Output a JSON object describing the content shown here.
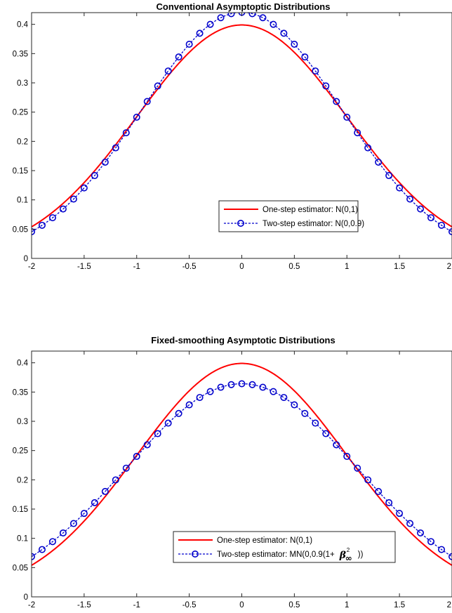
{
  "chart_data": [
    {
      "type": "line",
      "title": "Conventional Asymptoptic Distributions",
      "xlim": [
        -2,
        2
      ],
      "ylim": [
        0,
        0.42
      ],
      "xticks": [
        -2,
        -1.5,
        -1,
        -0.5,
        0,
        0.5,
        1,
        1.5,
        2
      ],
      "xtick_labels": [
        "-2",
        "-1.5",
        "-1",
        "-0.5",
        "0",
        "0.5",
        "1",
        "1.5",
        "2"
      ],
      "yticks": [
        0,
        0.05,
        0.1,
        0.15,
        0.2,
        0.25,
        0.3,
        0.35,
        0.4
      ],
      "ytick_labels": [
        "0",
        "0.05",
        "0.1",
        "0.15",
        "0.2",
        "0.25",
        "0.3",
        "0.35",
        "0.4"
      ],
      "legend_position": "lower-right",
      "grid": false,
      "series": [
        {
          "name": "One-step estimator: N(0,1)",
          "color": "#ff0000",
          "style": "solid",
          "marker": "none",
          "dist": "normal",
          "variance": 1,
          "x": [
            -2,
            -1.8,
            -1.6,
            -1.4,
            -1.2,
            -1,
            -0.8,
            -0.6,
            -0.4,
            -0.2,
            0,
            0.2,
            0.4,
            0.6,
            0.8,
            1,
            1.2,
            1.4,
            1.6,
            1.8,
            2
          ],
          "y": [
            0.054,
            0.079,
            0.111,
            0.15,
            0.194,
            0.242,
            0.29,
            0.333,
            0.368,
            0.391,
            0.399,
            0.391,
            0.368,
            0.333,
            0.29,
            0.242,
            0.194,
            0.15,
            0.111,
            0.079,
            0.054
          ]
        },
        {
          "name": "Two-step estimator: N(0,0.9)",
          "color": "#0000cc",
          "style": "dashed",
          "marker": "circle",
          "dist": "normal",
          "variance": 0.9,
          "x": [
            -2,
            -1.8,
            -1.6,
            -1.4,
            -1.2,
            -1,
            -0.8,
            -0.6,
            -0.4,
            -0.2,
            0,
            0.2,
            0.4,
            0.6,
            0.8,
            1,
            1.2,
            1.4,
            1.6,
            1.8,
            2
          ],
          "y": [
            0.046,
            0.07,
            0.102,
            0.142,
            0.189,
            0.24,
            0.293,
            0.342,
            0.383,
            0.411,
            0.421,
            0.411,
            0.383,
            0.342,
            0.293,
            0.24,
            0.189,
            0.142,
            0.102,
            0.07,
            0.046
          ]
        }
      ]
    },
    {
      "type": "line",
      "title": "Fixed-smoothing Asymptotic Distributions",
      "xlim": [
        -2,
        2
      ],
      "ylim": [
        0,
        0.42
      ],
      "xticks": [
        -2,
        -1.5,
        -1,
        -0.5,
        0,
        0.5,
        1,
        1.5,
        2
      ],
      "xtick_labels": [
        "-2",
        "-1.5",
        "-1",
        "-0.5",
        "0",
        "0.5",
        "1",
        "1.5",
        "2"
      ],
      "yticks": [
        0,
        0.05,
        0.1,
        0.15,
        0.2,
        0.25,
        0.3,
        0.35,
        0.4
      ],
      "ytick_labels": [
        "0",
        "0.05",
        "0.1",
        "0.15",
        "0.2",
        "0.25",
        "0.3",
        "0.35",
        "0.4"
      ],
      "legend_position": "lower-right",
      "grid": false,
      "series": [
        {
          "name": "One-step estimator: N(0,1)",
          "color": "#ff0000",
          "style": "solid",
          "marker": "none",
          "dist": "normal",
          "variance": 1,
          "x": [
            -2,
            -1.8,
            -1.6,
            -1.4,
            -1.2,
            -1,
            -0.8,
            -0.6,
            -0.4,
            -0.2,
            0,
            0.2,
            0.4,
            0.6,
            0.8,
            1,
            1.2,
            1.4,
            1.6,
            1.8,
            2
          ],
          "y": [
            0.054,
            0.079,
            0.111,
            0.15,
            0.194,
            0.242,
            0.29,
            0.333,
            0.368,
            0.391,
            0.399,
            0.391,
            0.368,
            0.333,
            0.29,
            0.242,
            0.194,
            0.15,
            0.111,
            0.079,
            0.054
          ]
        },
        {
          "name": "Two-step estimator: MN(0,0.9(1+",
          "name_math": "β",
          "name_sub": "∞",
          "name_sup": "2",
          "name_tail": "))",
          "color": "#0000cc",
          "style": "dashed",
          "marker": "circle",
          "dist": "normal",
          "variance": 1.2,
          "x": [
            -2,
            -1.8,
            -1.6,
            -1.4,
            -1.2,
            -1,
            -0.8,
            -0.6,
            -0.4,
            -0.2,
            0,
            0.2,
            0.4,
            0.6,
            0.8,
            1,
            1.2,
            1.4,
            1.6,
            1.8,
            2
          ],
          "y": [
            0.068,
            0.094,
            0.126,
            0.162,
            0.2,
            0.241,
            0.28,
            0.316,
            0.342,
            0.358,
            0.364,
            0.358,
            0.342,
            0.316,
            0.28,
            0.241,
            0.2,
            0.162,
            0.126,
            0.094,
            0.068
          ]
        }
      ]
    }
  ]
}
